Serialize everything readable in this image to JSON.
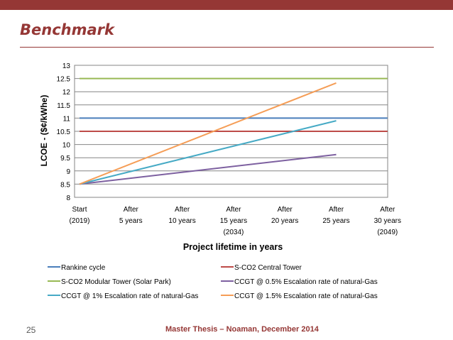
{
  "slide": {
    "title": "Benchmark",
    "number": "25",
    "footer": "Master Thesis – Noaman, December 2014"
  },
  "colors": {
    "accent": "#953735"
  },
  "chart_data": {
    "type": "line",
    "xlabel": "Project lifetime in years",
    "ylabel": "LCOE - ($¢/kWhe)",
    "ylim": [
      8,
      13
    ],
    "yticks": [
      8,
      8.5,
      9,
      9.5,
      10,
      10.5,
      11,
      11.5,
      12,
      12.5,
      13
    ],
    "ytick_labels": [
      "8",
      "8.5",
      "9",
      "9.5",
      "10",
      "10.5",
      "11",
      "11.5",
      "12",
      "12.5",
      "13"
    ],
    "categories": [
      [
        "Start",
        "(2019)"
      ],
      [
        "After",
        "5 years"
      ],
      [
        "After",
        "10 years"
      ],
      [
        "After",
        "15 years",
        "(2034)"
      ],
      [
        "After",
        "20 years"
      ],
      [
        "After",
        "25 years"
      ],
      [
        "After",
        "30 years",
        "(2049)"
      ]
    ],
    "x": [
      0,
      5,
      10,
      15,
      20,
      25,
      30
    ],
    "grid": "horizontal",
    "legend_position": "bottom",
    "series": [
      {
        "name": "Rankine cycle",
        "color": "#4A7EBB",
        "points": [
          [
            0,
            11
          ],
          [
            30,
            11
          ]
        ]
      },
      {
        "name": "S-CO2 Central Tower",
        "color": "#BE4B48",
        "points": [
          [
            0,
            10.5
          ],
          [
            30,
            10.5
          ]
        ]
      },
      {
        "name": "S-CO2 Modular Tower (Solar Park)",
        "color": "#98B954",
        "points": [
          [
            0,
            12.5
          ],
          [
            30,
            12.5
          ]
        ]
      },
      {
        "name": "CCGT @ 0.5% Escalation rate of natural-Gas",
        "color": "#7D60A0",
        "points": [
          [
            0,
            8.5
          ],
          [
            25,
            9.62
          ]
        ]
      },
      {
        "name": "CCGT @ 1% Escalation rate of natural-Gas",
        "color": "#46AAC5",
        "points": [
          [
            0,
            8.5
          ],
          [
            25,
            10.9
          ]
        ]
      },
      {
        "name": "CCGT @ 1.5% Escalation rate of natural-Gas",
        "color": "#F59D56",
        "points": [
          [
            0,
            8.5
          ],
          [
            25,
            12.33
          ]
        ]
      }
    ]
  }
}
